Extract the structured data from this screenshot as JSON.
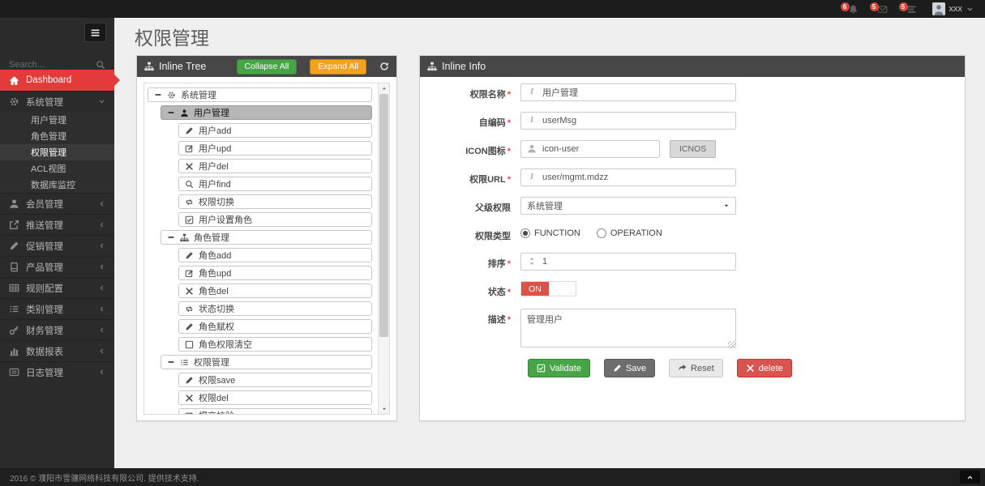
{
  "navbar": {
    "badges": [
      {
        "icon": "bell",
        "count": "6",
        "name": "notifications-menu"
      },
      {
        "icon": "envelope",
        "count": "5",
        "name": "messages-menu"
      },
      {
        "icon": "tasks",
        "count": "5",
        "name": "tasks-menu"
      }
    ],
    "user": {
      "name": "xxx"
    }
  },
  "sidebar": {
    "search_placeholder": "Search...",
    "items": [
      {
        "label": "Dashboard",
        "icon": "home",
        "type": "dashboard",
        "active": true,
        "name": "sidebar-item-dashboard"
      },
      {
        "label": "系统管理",
        "icon": "gears",
        "chevron": "chevron-down",
        "type": "top",
        "name": "sidebar-item-system"
      },
      {
        "label": "用户管理",
        "type": "sub",
        "name": "sidebar-subitem-users"
      },
      {
        "label": "角色管理",
        "type": "sub",
        "name": "sidebar-subitem-roles"
      },
      {
        "label": "权限管理",
        "type": "sub",
        "active": true,
        "name": "sidebar-subitem-permissions"
      },
      {
        "label": "ACL视图",
        "type": "sub",
        "name": "sidebar-subitem-acl"
      },
      {
        "label": "数据库监控",
        "type": "sub",
        "name": "sidebar-subitem-db-monitor"
      },
      {
        "label": "会员管理",
        "icon": "user",
        "chevron": "chevron-left",
        "type": "top",
        "name": "sidebar-item-members"
      },
      {
        "label": "推送管理",
        "icon": "send",
        "chevron": "chevron-left",
        "type": "top",
        "name": "sidebar-item-push"
      },
      {
        "label": "促销管理",
        "icon": "pencil",
        "chevron": "chevron-left",
        "type": "top",
        "name": "sidebar-item-promotion"
      },
      {
        "label": "产品管理",
        "icon": "book",
        "chevron": "chevron-left",
        "type": "top",
        "name": "sidebar-item-products"
      },
      {
        "label": "规则配置",
        "icon": "table",
        "chevron": "chevron-left",
        "type": "top",
        "name": "sidebar-item-rules"
      },
      {
        "label": "类别管理",
        "icon": "list",
        "chevron": "chevron-left",
        "type": "top",
        "name": "sidebar-item-categories"
      },
      {
        "label": "财务管理",
        "icon": "key",
        "chevron": "chevron-left",
        "type": "top",
        "name": "sidebar-item-finance"
      },
      {
        "label": "数据报表",
        "icon": "bar-chart",
        "chevron": "chevron-left",
        "type": "top",
        "name": "sidebar-item-reports"
      },
      {
        "label": "日志管理",
        "icon": "list-alt",
        "chevron": "chevron-left",
        "type": "top",
        "name": "sidebar-item-logs"
      }
    ]
  },
  "page": {
    "title": "权限管理"
  },
  "tree_panel": {
    "title": "Inline Tree",
    "collapse_all_label": "Collapse All",
    "expand_all_label": "Expand All",
    "nodes": [
      {
        "label": "系统管理",
        "icon": "gears",
        "level": 0,
        "parent": true
      },
      {
        "label": "用户管理",
        "icon": "user",
        "level": 1,
        "parent": true,
        "selected": true
      },
      {
        "label": "用户add",
        "icon": "pencil",
        "level": 2
      },
      {
        "label": "用户upd",
        "icon": "edit",
        "level": 2
      },
      {
        "label": "用户del",
        "icon": "close",
        "level": 2
      },
      {
        "label": "用户find",
        "icon": "search",
        "level": 2
      },
      {
        "label": "权限切换",
        "icon": "retweet",
        "level": 2
      },
      {
        "label": "用户设置角色",
        "icon": "check-square",
        "level": 2
      },
      {
        "label": "角色管理",
        "icon": "sitemap",
        "level": 1,
        "parent": true
      },
      {
        "label": "角色add",
        "icon": "pencil",
        "level": 2
      },
      {
        "label": "角色upd",
        "icon": "edit",
        "level": 2
      },
      {
        "label": "角色del",
        "icon": "close",
        "level": 2
      },
      {
        "label": "状态切换",
        "icon": "retweet",
        "level": 2
      },
      {
        "label": "角色赋权",
        "icon": "pencil",
        "level": 2
      },
      {
        "label": "角色权限清空",
        "icon": "square",
        "level": 2
      },
      {
        "label": "权限管理",
        "icon": "list",
        "level": 1,
        "parent": true
      },
      {
        "label": "权限save",
        "icon": "pencil",
        "level": 2
      },
      {
        "label": "权限del",
        "icon": "close",
        "level": 2
      },
      {
        "label": "提交校验",
        "icon": "edit",
        "level": 2,
        "partial": true
      }
    ]
  },
  "info_panel": {
    "title": "Inline Info",
    "required_marker": "*",
    "fields": {
      "name": {
        "label": "权限名称",
        "value": "用户管理"
      },
      "code": {
        "label": "自编码",
        "value": "userMsg"
      },
      "icon": {
        "label": "ICON图标",
        "value": "icon-user",
        "button": "ICNOS"
      },
      "url": {
        "label": "权限URL",
        "value": "user/mgmt.mdzz"
      },
      "parent": {
        "label": "父级权限",
        "value": "系统管理"
      },
      "type": {
        "label": "权限类型",
        "options": [
          "FUNCTION",
          "OPERATION"
        ],
        "selected": "FUNCTION"
      },
      "sort": {
        "label": "排序",
        "value": "1"
      },
      "status": {
        "label": "状态",
        "value": "ON"
      },
      "desc": {
        "label": "描述",
        "value": "管理用户"
      }
    },
    "buttons": [
      {
        "label": "Validate",
        "icon": "check-square",
        "style": "green",
        "name": "validate-button"
      },
      {
        "label": "Save",
        "icon": "pencil",
        "style": "dark",
        "name": "save-button"
      },
      {
        "label": "Reset",
        "icon": "redo",
        "style": "light",
        "name": "reset-button"
      },
      {
        "label": "delete",
        "icon": "close",
        "style": "red",
        "name": "delete-button"
      }
    ]
  },
  "footer": {
    "text": "2016 © 濮阳市雪骧网络科技有限公司. 提供技术支持."
  },
  "colors": {
    "navbar_bg": "#1c1c1c",
    "sidebar_bg": "#2b2b2b",
    "dashboard_red": "#e33a3a",
    "panel_header": "#474747",
    "collapse_green": "#47a447",
    "expand_orange": "#f3a120",
    "selected_node_gray": "#b7b7b7",
    "switch_on_red": "#df5046",
    "delete_red": "#d9534f",
    "badge_red": "#d9453c",
    "content_bg": "#efefef"
  }
}
